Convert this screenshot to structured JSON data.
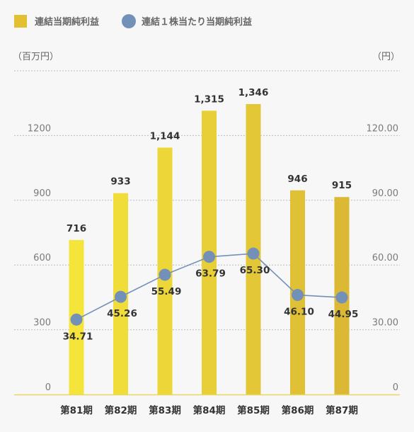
{
  "legend": {
    "bar_label": "連結当期純利益",
    "line_label": "連結１株当たり当期純利益"
  },
  "units": {
    "left": "（百万円）",
    "right": "（円）"
  },
  "colors": {
    "bar_light": "#f5e43a",
    "bar_dark": "#dcb934",
    "line": "#7390b8",
    "marker": "#7390b8",
    "legend_bar": "#e3bf32",
    "grid": "#bdbdbd",
    "axis": "#e9d860"
  },
  "chart_data": {
    "type": "bar",
    "categories": [
      "第81期",
      "第82期",
      "第83期",
      "第84期",
      "第85期",
      "第86期",
      "第87期"
    ],
    "series": [
      {
        "name": "連結当期純利益",
        "type": "bar",
        "axis": "left",
        "values": [
          716,
          933,
          1144,
          1315,
          1346,
          946,
          915
        ],
        "labels": [
          "716",
          "933",
          "1,144",
          "1,315",
          "1,346",
          "946",
          "915"
        ]
      },
      {
        "name": "連結１株当たり当期純利益",
        "type": "line",
        "axis": "right",
        "values": [
          34.71,
          45.26,
          55.49,
          63.79,
          65.3,
          46.1,
          44.95
        ],
        "labels": [
          "34.71",
          "45.26",
          "55.49",
          "63.79",
          "65.30",
          "46.10",
          "44.95"
        ]
      }
    ],
    "y_left": {
      "ticks": [
        "0",
        "300",
        "600",
        "900",
        "1200"
      ],
      "tick_values": [
        0,
        300,
        600,
        900,
        1200
      ],
      "ylim": [
        0,
        1500
      ]
    },
    "y_right": {
      "ticks": [
        "0",
        "30.00",
        "60.00",
        "90.00",
        "120.00"
      ],
      "tick_values": [
        0,
        30,
        60,
        90,
        120
      ],
      "ylim": [
        0,
        150
      ]
    },
    "grid": true,
    "legend_position": "top-left"
  }
}
